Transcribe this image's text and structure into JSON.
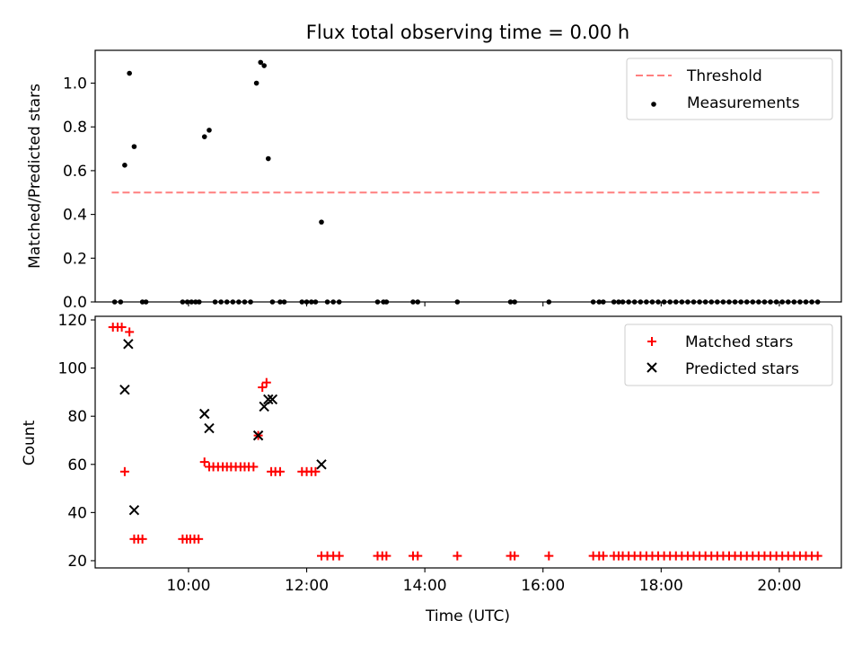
{
  "chart_data": [
    {
      "panel": "top",
      "type": "scatter",
      "title": "Flux total observing time = 0.00 h",
      "xlabel": "",
      "ylabel": "Matched/Predicted stars",
      "xlim": [
        8.42,
        21.05
      ],
      "ylim": [
        0,
        1.15
      ],
      "yticks": [
        0.0,
        0.2,
        0.4,
        0.6,
        0.8,
        1.0
      ],
      "ytick_labels": [
        "0.0",
        "0.2",
        "0.4",
        "0.6",
        "0.8",
        "1.0"
      ],
      "xticks": [
        10,
        12,
        14,
        16,
        18,
        20
      ],
      "grid": false,
      "legend_position": "top-right",
      "colors": {
        "threshold": "#ff7f7f",
        "measurements": "#000000"
      },
      "series": [
        {
          "name": "Threshold",
          "kind": "dashed-line",
          "x": [
            8.7,
            20.72
          ],
          "y": [
            0.5,
            0.5
          ]
        },
        {
          "name": "Measurements",
          "kind": "dot",
          "x": [
            8.75,
            8.85,
            8.92,
            9.0,
            9.08,
            9.22,
            9.28,
            9.9,
            9.98,
            10.05,
            10.12,
            10.18,
            10.27,
            10.35,
            10.45,
            10.55,
            10.65,
            10.75,
            10.85,
            10.95,
            11.05,
            11.15,
            11.22,
            11.28,
            11.35,
            11.42,
            11.55,
            11.62,
            11.92,
            12.0,
            12.08,
            12.15,
            12.25,
            12.35,
            12.45,
            12.55,
            13.2,
            13.3,
            13.35,
            13.8,
            13.88,
            14.55,
            15.45,
            15.52,
            16.1,
            16.85,
            16.95,
            17.02,
            17.2,
            17.28,
            17.35,
            17.45,
            17.55,
            17.65,
            17.75,
            17.85,
            17.95,
            18.05,
            18.15,
            18.25,
            18.35,
            18.45,
            18.55,
            18.65,
            18.75,
            18.85,
            18.95,
            19.05,
            19.15,
            19.25,
            19.35,
            19.45,
            19.55,
            19.65,
            19.75,
            19.85,
            19.95,
            20.05,
            20.15,
            20.25,
            20.35,
            20.45,
            20.55,
            20.65
          ],
          "y": [
            0,
            0,
            0.625,
            1.045,
            0.71,
            0,
            0,
            0,
            0,
            0,
            0,
            0,
            0.755,
            0.785,
            0,
            0,
            0,
            0,
            0,
            0,
            0,
            1.0,
            1.095,
            1.08,
            0.655,
            0,
            0,
            0,
            0,
            0,
            0,
            0,
            0.365,
            0,
            0,
            0,
            0,
            0,
            0,
            0,
            0,
            0,
            0,
            0,
            0,
            0,
            0,
            0,
            0,
            0,
            0,
            0,
            0,
            0,
            0,
            0,
            0,
            0,
            0,
            0,
            0,
            0,
            0,
            0,
            0,
            0,
            0,
            0,
            0,
            0,
            0,
            0,
            0,
            0,
            0,
            0,
            0,
            0,
            0,
            0,
            0,
            0,
            0,
            0
          ]
        }
      ]
    },
    {
      "panel": "bottom",
      "type": "scatter",
      "title": "",
      "xlabel": "Time (UTC)",
      "ylabel": "Count",
      "xlim": [
        8.42,
        21.05
      ],
      "ylim": [
        17,
        121.5
      ],
      "yticks": [
        20,
        40,
        60,
        80,
        100,
        120
      ],
      "ytick_labels": [
        "20",
        "40",
        "60",
        "80",
        "100",
        "120"
      ],
      "xticks": [
        10,
        12,
        14,
        16,
        18,
        20
      ],
      "xtick_labels": [
        "10:00",
        "12:00",
        "14:00",
        "16:00",
        "18:00",
        "20:00"
      ],
      "grid": false,
      "legend_position": "top-right",
      "colors": {
        "matched": "#ff0000",
        "predicted": "#000000"
      },
      "series": [
        {
          "name": "Matched stars",
          "kind": "plus",
          "x": [
            8.72,
            8.8,
            8.87,
            8.92,
            9.0,
            9.08,
            9.15,
            9.22,
            9.9,
            9.97,
            10.03,
            10.1,
            10.17,
            10.27,
            10.35,
            10.42,
            10.5,
            10.58,
            10.65,
            10.72,
            10.8,
            10.88,
            10.95,
            11.02,
            11.1,
            11.18,
            11.25,
            11.32,
            11.4,
            11.47,
            11.55,
            11.92,
            12.0,
            12.08,
            12.15,
            12.25,
            12.35,
            12.45,
            12.55,
            13.2,
            13.28,
            13.35,
            13.8,
            13.88,
            14.55,
            15.45,
            15.52,
            16.1,
            16.85,
            16.95,
            17.02,
            17.2,
            17.28,
            17.35,
            17.45,
            17.55,
            17.65,
            17.75,
            17.85,
            17.95,
            18.05,
            18.15,
            18.25,
            18.35,
            18.45,
            18.55,
            18.65,
            18.75,
            18.85,
            18.95,
            19.05,
            19.15,
            19.25,
            19.35,
            19.45,
            19.55,
            19.65,
            19.75,
            19.85,
            19.95,
            20.05,
            20.15,
            20.25,
            20.35,
            20.45,
            20.55,
            20.65
          ],
          "y": [
            117,
            117,
            117,
            57,
            115,
            29,
            29,
            29,
            29,
            29,
            29,
            29,
            29,
            61,
            59,
            59,
            59,
            59,
            59,
            59,
            59,
            59,
            59,
            59,
            59,
            72,
            92,
            94,
            57,
            57,
            57,
            57,
            57,
            57,
            57,
            22,
            22,
            22,
            22,
            22,
            22,
            22,
            22,
            22,
            22,
            22,
            22,
            22,
            22,
            22,
            22,
            22,
            22,
            22,
            22,
            22,
            22,
            22,
            22,
            22,
            22,
            22,
            22,
            22,
            22,
            22,
            22,
            22,
            22,
            22,
            22,
            22,
            22,
            22,
            22,
            22,
            22,
            22,
            22,
            22,
            22,
            22,
            22,
            22,
            22,
            22,
            22
          ]
        },
        {
          "name": "Predicted stars",
          "kind": "x",
          "x": [
            8.92,
            8.98,
            9.08,
            10.27,
            10.35,
            11.18,
            11.28,
            11.35,
            11.42,
            12.25
          ],
          "y": [
            91,
            110,
            41,
            81,
            75,
            72,
            84,
            87,
            87,
            60
          ]
        }
      ]
    }
  ]
}
